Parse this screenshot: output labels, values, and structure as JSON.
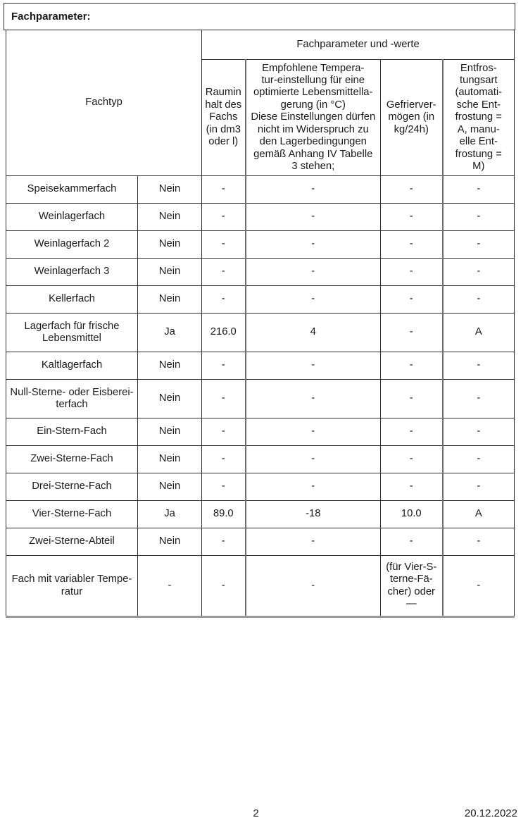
{
  "page": {
    "title": "Fachparameter:",
    "footer": {
      "page_number": "2",
      "date": "20.12.2022"
    }
  },
  "table": {
    "group_header": "Fachparameter und -werte",
    "row_header": "Fachtyp",
    "columns": [
      {
        "id": "rauminhalt",
        "label": "Raumin\nhalt des\nFachs\n(in dm3\noder l)"
      },
      {
        "id": "temperatur",
        "label": "Empfohlene Tempera-\ntur-einstellung für eine\noptimierte Lebensmittella-\ngerung (in °C)\nDiese Einstellungen dürfen\nnicht im Widerspruch zu\nden Lagerbedingungen\ngemäß Anhang IV Tabelle\n3 stehen;"
      },
      {
        "id": "gefriervermoegen",
        "label": "Gefrierver-\nmögen (in\nkg/24h)"
      },
      {
        "id": "entfrostung",
        "label": "Entfros-\ntungsart\n(automati-\nsche Ent-\nfrostung =\nA, manu-\nelle Ent-\nfrostung =\nM)"
      }
    ],
    "rows": [
      {
        "fachtyp": "Speisekammerfach",
        "vorhanden": "Nein",
        "rauminhalt": "-",
        "temperatur": "-",
        "gefriervermoegen": "-",
        "entfrostung": "-"
      },
      {
        "fachtyp": "Weinlagerfach",
        "vorhanden": "Nein",
        "rauminhalt": "-",
        "temperatur": "-",
        "gefriervermoegen": "-",
        "entfrostung": "-"
      },
      {
        "fachtyp": "Weinlagerfach 2",
        "vorhanden": "Nein",
        "rauminhalt": "-",
        "temperatur": "-",
        "gefriervermoegen": "-",
        "entfrostung": "-"
      },
      {
        "fachtyp": "Weinlagerfach 3",
        "vorhanden": "Nein",
        "rauminhalt": "-",
        "temperatur": "-",
        "gefriervermoegen": "-",
        "entfrostung": "-"
      },
      {
        "fachtyp": "Kellerfach",
        "vorhanden": "Nein",
        "rauminhalt": "-",
        "temperatur": "-",
        "gefriervermoegen": "-",
        "entfrostung": "-"
      },
      {
        "fachtyp": "Lagerfach für frische\nLebensmittel",
        "vorhanden": "Ja",
        "rauminhalt": "216.0",
        "temperatur": "4",
        "gefriervermoegen": "-",
        "entfrostung": "A"
      },
      {
        "fachtyp": "Kaltlagerfach",
        "vorhanden": "Nein",
        "rauminhalt": "-",
        "temperatur": "-",
        "gefriervermoegen": "-",
        "entfrostung": "-"
      },
      {
        "fachtyp": "Null-Sterne- oder Eisberei-\nterfach",
        "vorhanden": "Nein",
        "rauminhalt": "-",
        "temperatur": "-",
        "gefriervermoegen": "-",
        "entfrostung": "-"
      },
      {
        "fachtyp": "Ein-Stern-Fach",
        "vorhanden": "Nein",
        "rauminhalt": "-",
        "temperatur": "-",
        "gefriervermoegen": "-",
        "entfrostung": "-"
      },
      {
        "fachtyp": "Zwei-Sterne-Fach",
        "vorhanden": "Nein",
        "rauminhalt": "-",
        "temperatur": "-",
        "gefriervermoegen": "-",
        "entfrostung": "-"
      },
      {
        "fachtyp": "Drei-Sterne-Fach",
        "vorhanden": "Nein",
        "rauminhalt": "-",
        "temperatur": "-",
        "gefriervermoegen": "-",
        "entfrostung": "-"
      },
      {
        "fachtyp": "Vier-Sterne-Fach",
        "vorhanden": "Ja",
        "rauminhalt": "89.0",
        "temperatur": "-18",
        "gefriervermoegen": "10.0",
        "entfrostung": "A"
      },
      {
        "fachtyp": "Zwei-Sterne-Abteil",
        "vorhanden": "Nein",
        "rauminhalt": "-",
        "temperatur": "-",
        "gefriervermoegen": "-",
        "entfrostung": "-"
      },
      {
        "fachtyp": "Fach mit variabler Tempe-\nratur",
        "vorhanden": "-",
        "rauminhalt": "-",
        "temperatur": "-",
        "gefriervermoegen": "(für Vier-S-\nterne-Fä-\ncher) oder\n—",
        "entfrostung": "-"
      }
    ]
  }
}
